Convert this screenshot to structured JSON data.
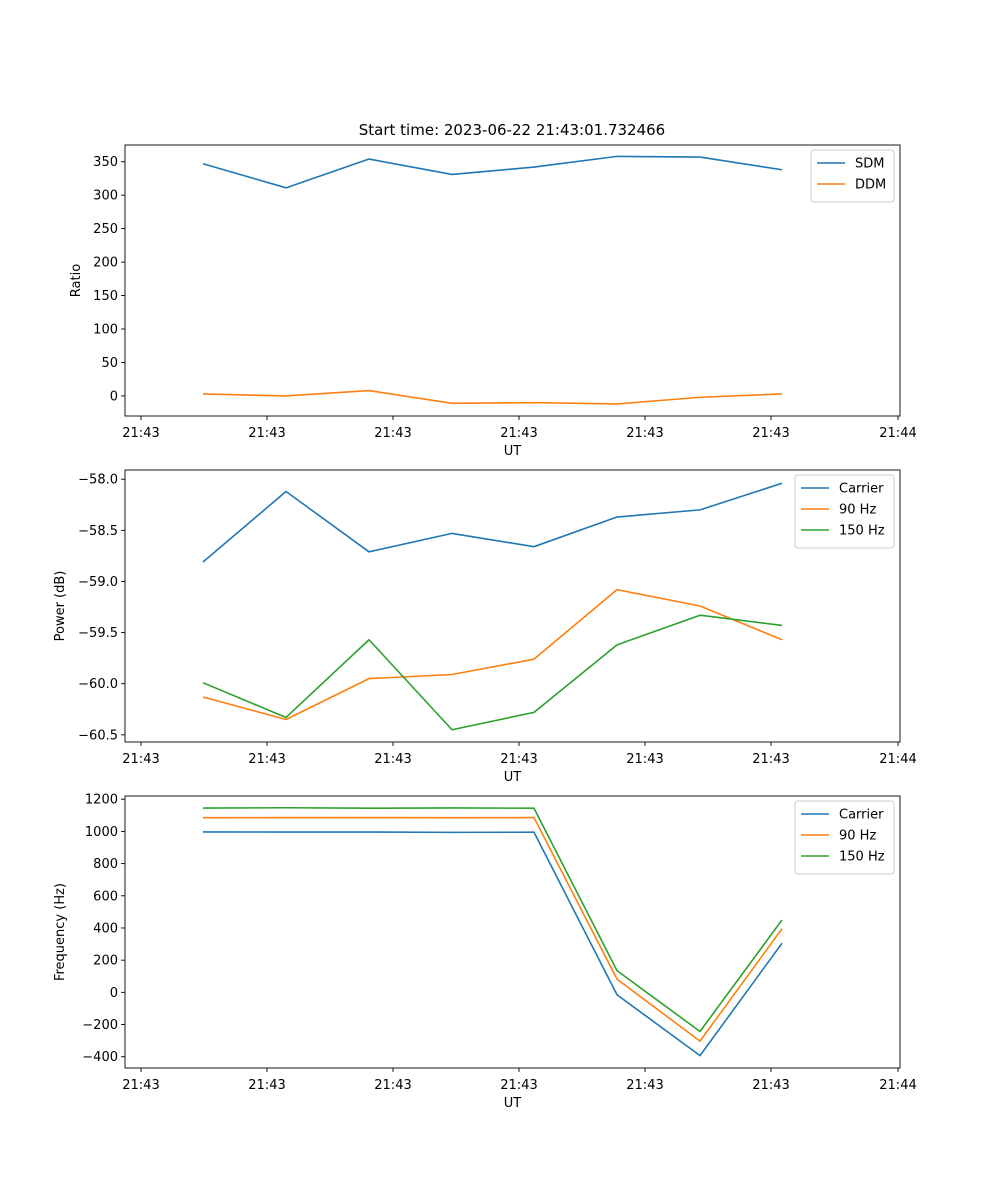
{
  "title": "Start time: 2023-06-22 21:43:01.732466",
  "colors": {
    "blue": "#1f77b4",
    "orange": "#ff7f0e",
    "green": "#2ca02c"
  },
  "chart_data": [
    {
      "type": "line",
      "xlabel": "UT",
      "ylabel": "Ratio",
      "x_tick_labels": [
        "21:43",
        "21:43",
        "21:43",
        "21:43",
        "21:43",
        "21:43",
        "21:43"
      ],
      "x_end_tick_label": "21:44",
      "y_ticks": [
        0,
        50,
        100,
        150,
        200,
        250,
        300,
        350
      ],
      "y_tick_labels": [
        "0",
        "50",
        "100",
        "150",
        "200",
        "250",
        "300",
        "350"
      ],
      "ylim": [
        -30,
        375
      ],
      "legend": "top-right",
      "series": [
        {
          "name": "SDM",
          "color": "#1f77b4",
          "values": [
            347,
            311,
            354,
            331,
            342,
            358,
            357,
            338
          ]
        },
        {
          "name": "DDM",
          "color": "#ff7f0e",
          "values": [
            3,
            0,
            8,
            -11,
            -10,
            -12,
            -2,
            3
          ]
        }
      ]
    },
    {
      "type": "line",
      "xlabel": "UT",
      "ylabel": "Power (dB)",
      "x_tick_labels": [
        "21:43",
        "21:43",
        "21:43",
        "21:43",
        "21:43",
        "21:43",
        "21:43"
      ],
      "x_end_tick_label": "21:44",
      "y_ticks": [
        -60.5,
        -60.0,
        -59.5,
        -59.0,
        -58.5,
        -58.0
      ],
      "y_tick_labels": [
        "−60.5",
        "−60.0",
        "−59.5",
        "−59.0",
        "−58.5",
        "−58.0"
      ],
      "ylim": [
        -60.57,
        -57.91
      ],
      "legend": "top-right",
      "series": [
        {
          "name": "Carrier",
          "color": "#1f77b4",
          "values": [
            -58.81,
            -58.12,
            -58.71,
            -58.53,
            -58.66,
            -58.37,
            -58.3,
            -58.04
          ]
        },
        {
          "name": "90 Hz",
          "color": "#ff7f0e",
          "values": [
            -60.13,
            -60.35,
            -59.95,
            -59.91,
            -59.76,
            -59.08,
            -59.24,
            -59.57
          ]
        },
        {
          "name": "150 Hz",
          "color": "#2ca02c",
          "values": [
            -59.99,
            -60.33,
            -59.57,
            -60.45,
            -60.28,
            -59.62,
            -59.33,
            -59.43
          ]
        }
      ]
    },
    {
      "type": "line",
      "xlabel": "UT",
      "ylabel": "Frequency (Hz)",
      "x_tick_labels": [
        "21:43",
        "21:43",
        "21:43",
        "21:43",
        "21:43",
        "21:43",
        "21:43"
      ],
      "x_end_tick_label": "21:44",
      "y_ticks": [
        -400,
        -200,
        0,
        200,
        400,
        600,
        800,
        1000,
        1200
      ],
      "y_tick_labels": [
        "−400",
        "−200",
        "0",
        "200",
        "400",
        "600",
        "800",
        "1000",
        "1200"
      ],
      "ylim": [
        -470,
        1220
      ],
      "legend": "top-right",
      "series": [
        {
          "name": "Carrier",
          "color": "#1f77b4",
          "values": [
            997,
            996,
            996,
            994,
            995,
            -15,
            -393,
            305
          ]
        },
        {
          "name": "90 Hz",
          "color": "#ff7f0e",
          "values": [
            1085,
            1086,
            1086,
            1085,
            1086,
            82,
            -303,
            395
          ]
        },
        {
          "name": "150 Hz",
          "color": "#2ca02c",
          "values": [
            1145,
            1147,
            1144,
            1146,
            1144,
            135,
            -243,
            450
          ]
        }
      ]
    }
  ]
}
